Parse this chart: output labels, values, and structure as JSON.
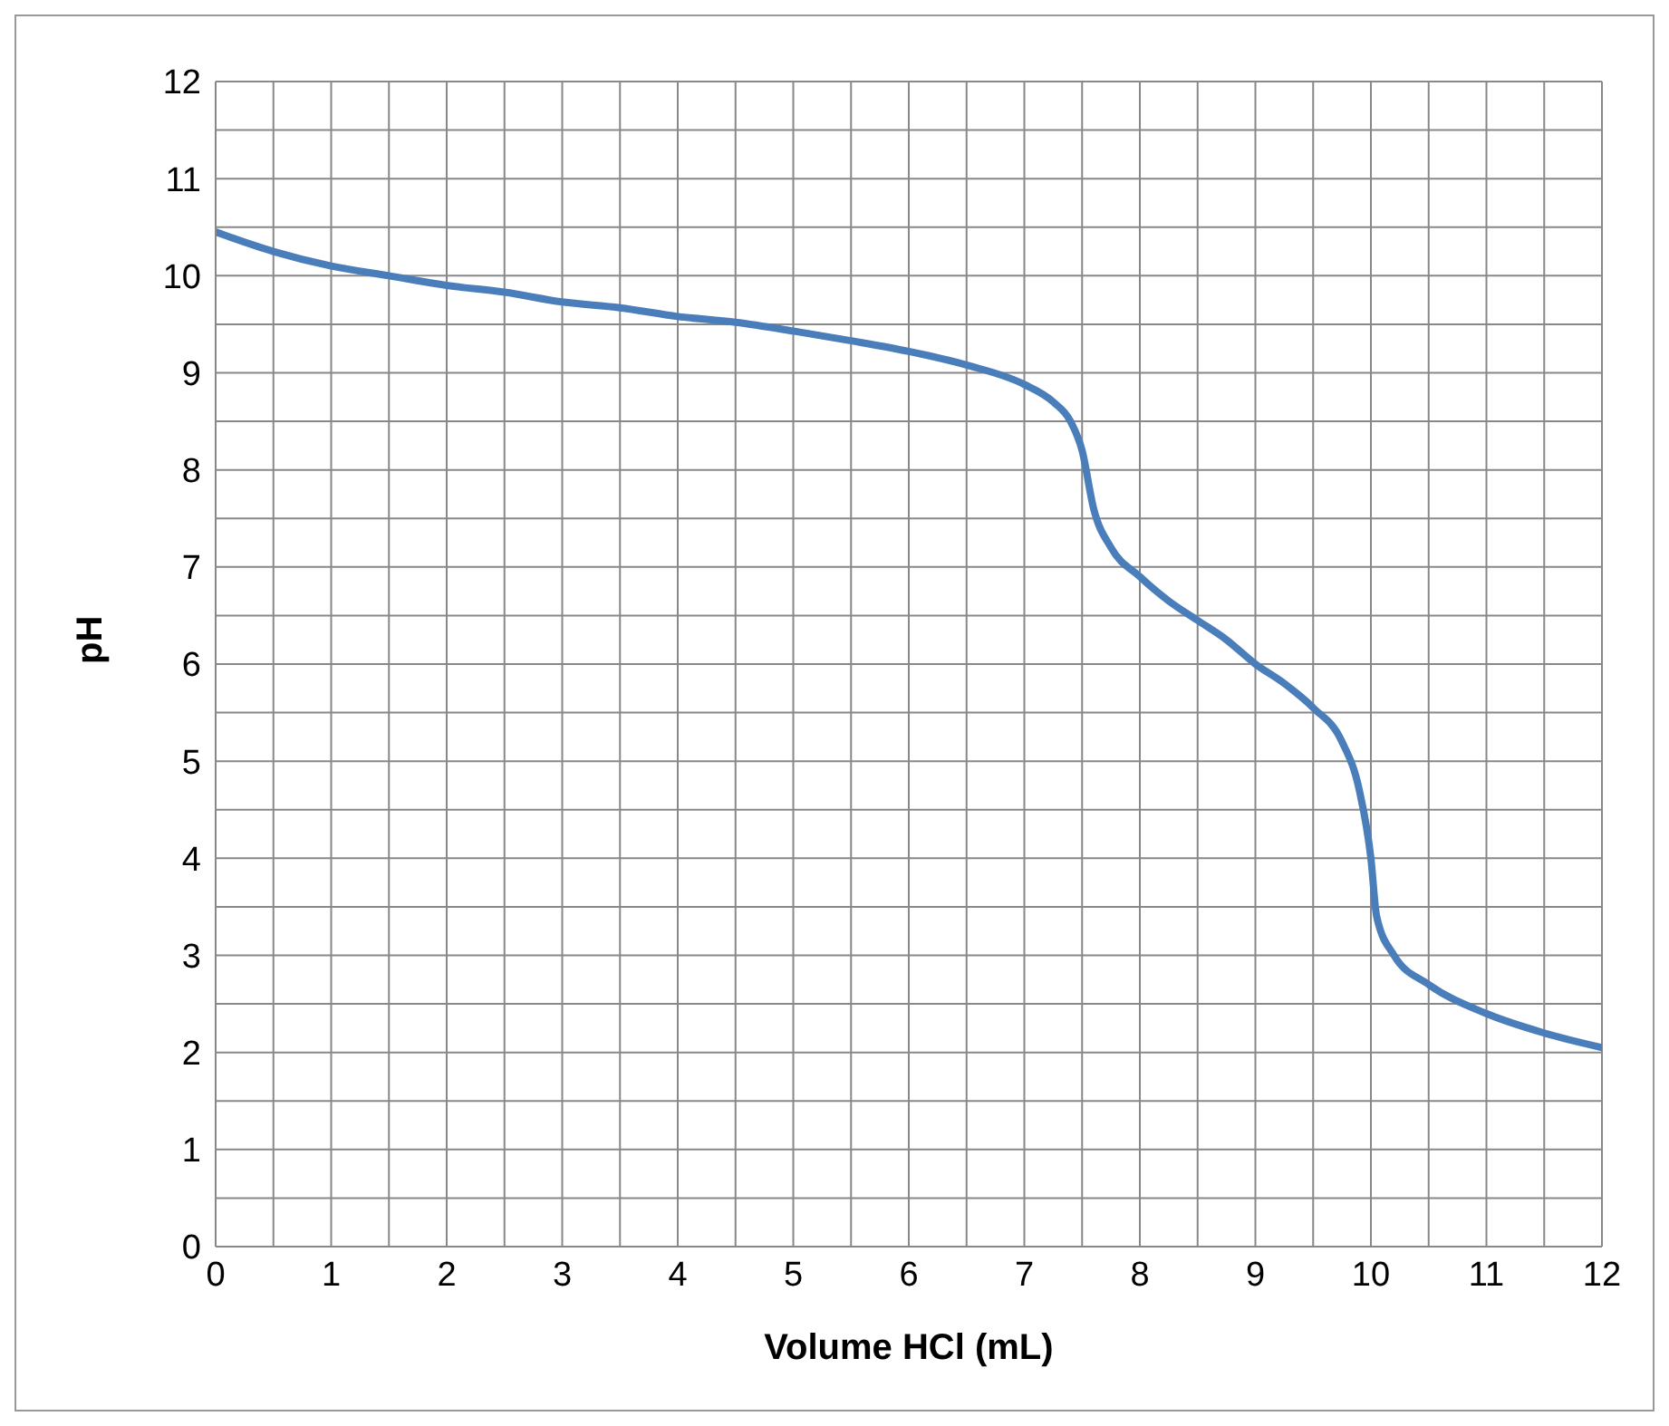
{
  "chart_data": {
    "type": "line",
    "xlabel": "Volume HCl (mL)",
    "ylabel": "pH",
    "x": [
      0,
      0.5,
      1,
      1.5,
      2,
      2.5,
      3,
      3.5,
      4,
      4.5,
      5,
      5.5,
      6,
      6.5,
      7,
      7.25,
      7.4,
      7.5,
      7.6,
      7.75,
      8,
      8.25,
      8.5,
      8.75,
      9,
      9.25,
      9.5,
      9.75,
      9.9,
      10,
      10.05,
      10.2,
      10.5,
      11,
      11.5,
      12
    ],
    "series": [
      {
        "color": "#4a7ebb",
        "values": [
          10.45,
          10.25,
          10.1,
          10.0,
          9.9,
          9.83,
          9.73,
          9.67,
          9.58,
          9.52,
          9.43,
          9.33,
          9.22,
          9.08,
          8.88,
          8.7,
          8.5,
          8.2,
          7.6,
          7.2,
          6.9,
          6.65,
          6.45,
          6.25,
          6.0,
          5.8,
          5.55,
          5.2,
          4.7,
          4.0,
          3.4,
          3.0,
          2.7,
          2.4,
          2.2,
          2.05
        ]
      }
    ],
    "xlim": [
      0,
      12
    ],
    "ylim": [
      0,
      12
    ],
    "xticks": [
      0,
      {
        "value": 0.5,
        "label": null
      },
      1,
      {
        "value": 1.5,
        "label": null
      },
      2,
      {
        "value": 2.5,
        "label": null
      },
      3,
      {
        "value": 3.5,
        "label": null
      },
      4,
      {
        "value": 4.5,
        "label": null
      },
      5,
      {
        "value": 5.5,
        "label": null
      },
      6,
      {
        "value": 6.5,
        "label": null
      },
      7,
      {
        "value": 7.5,
        "label": null
      },
      8,
      {
        "value": 8.5,
        "label": null
      },
      9,
      {
        "value": 9.5,
        "label": null
      },
      10,
      {
        "value": 10.5,
        "label": null
      },
      11,
      {
        "value": 11.5,
        "label": null
      },
      12
    ],
    "yticks": [
      0,
      {
        "value": 0.5,
        "label": null
      },
      1,
      {
        "value": 1.5,
        "label": null
      },
      2,
      {
        "value": 2.5,
        "label": null
      },
      3,
      {
        "value": 3.5,
        "label": null
      },
      4,
      {
        "value": 4.5,
        "label": null
      },
      5,
      {
        "value": 5.5,
        "label": null
      },
      6,
      {
        "value": 6.5,
        "label": null
      },
      7,
      {
        "value": 7.5,
        "label": null
      },
      8,
      {
        "value": 8.5,
        "label": null
      },
      9,
      {
        "value": 9.5,
        "label": null
      },
      10,
      {
        "value": 10.5,
        "label": null
      },
      11,
      {
        "value": 11.5,
        "label": null
      },
      12
    ],
    "grid": true,
    "marker": "none"
  }
}
